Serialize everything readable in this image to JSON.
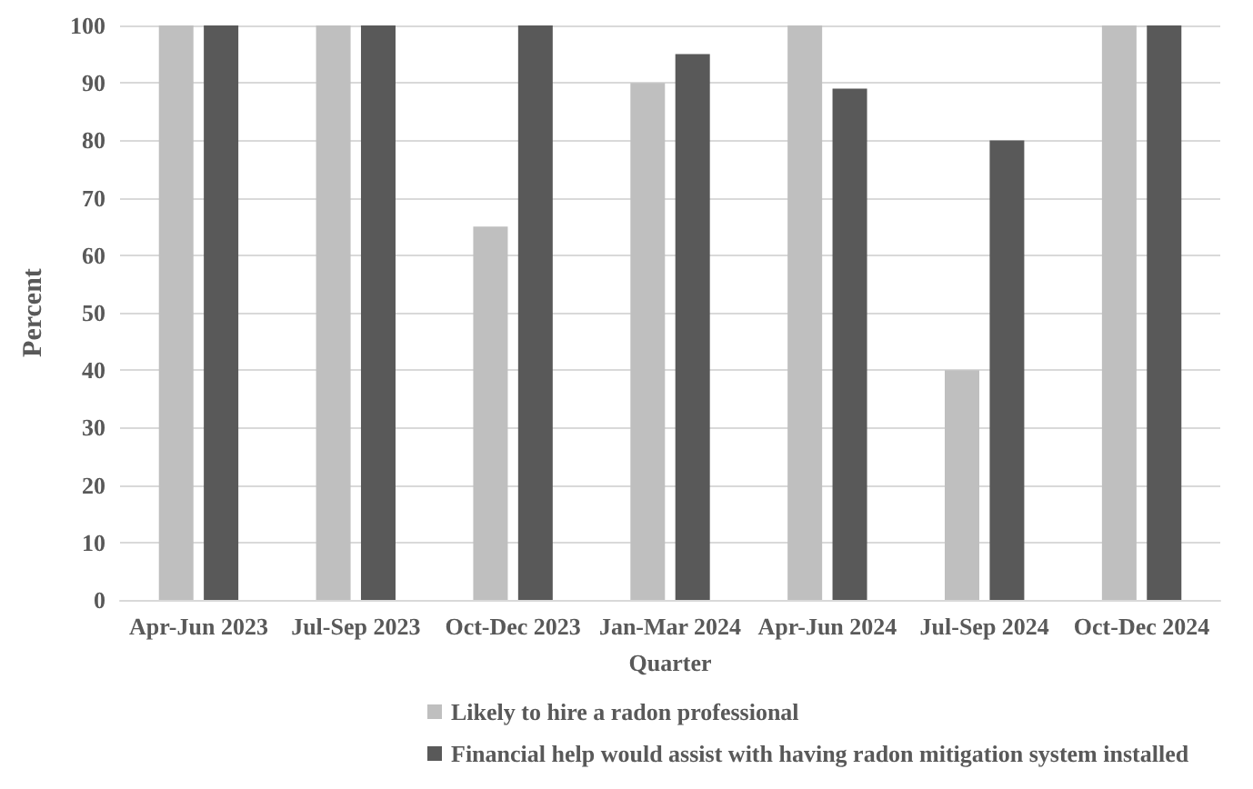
{
  "chart_data": {
    "type": "bar",
    "xlabel": "Quarter",
    "ylabel": "Percent",
    "categories": [
      "Apr-Jun 2023",
      "Jul-Sep 2023",
      "Oct-Dec 2023",
      "Jan-Mar 2024",
      "Apr-Jun 2024",
      "Jul-Sep 2024",
      "Oct-Dec 2024"
    ],
    "series": [
      {
        "name": "Likely to hire a radon professional",
        "color": "#bfbfbf",
        "values": [
          100,
          100,
          65,
          90,
          100,
          40,
          100
        ]
      },
      {
        "name": "Financial help would assist with having radon mitigation system installed",
        "color": "#595959",
        "values": [
          100,
          100,
          100,
          95,
          89,
          80,
          100
        ]
      }
    ],
    "ylim": [
      0,
      100
    ],
    "yticks": [
      0,
      10,
      20,
      30,
      40,
      50,
      60,
      70,
      80,
      90,
      100
    ],
    "grid": "y",
    "legend": "bottom"
  }
}
